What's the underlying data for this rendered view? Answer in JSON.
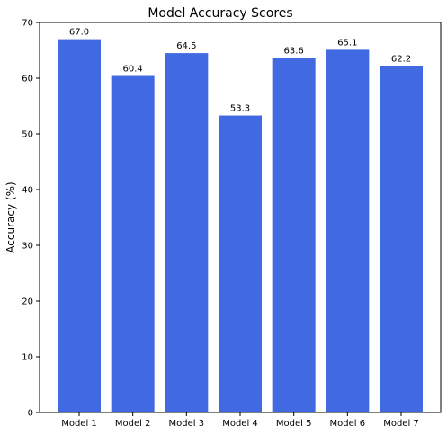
{
  "chart_data": {
    "type": "bar",
    "title": "Model Accuracy Scores",
    "xlabel": "",
    "ylabel": "Accuracy (%)",
    "categories": [
      "Model 1",
      "Model 2",
      "Model 3",
      "Model 4",
      "Model 5",
      "Model 6",
      "Model 7"
    ],
    "values": [
      67.0,
      60.4,
      64.5,
      53.3,
      63.6,
      65.1,
      62.2
    ],
    "data_labels": [
      "67.0",
      "60.4",
      "64.5",
      "53.3",
      "63.6",
      "65.1",
      "62.2"
    ],
    "ylim": [
      0,
      70
    ],
    "yticks": [
      0,
      10,
      20,
      30,
      40,
      50,
      60,
      70
    ],
    "bar_color": "#4169E1",
    "grid": false,
    "legend": "none"
  }
}
